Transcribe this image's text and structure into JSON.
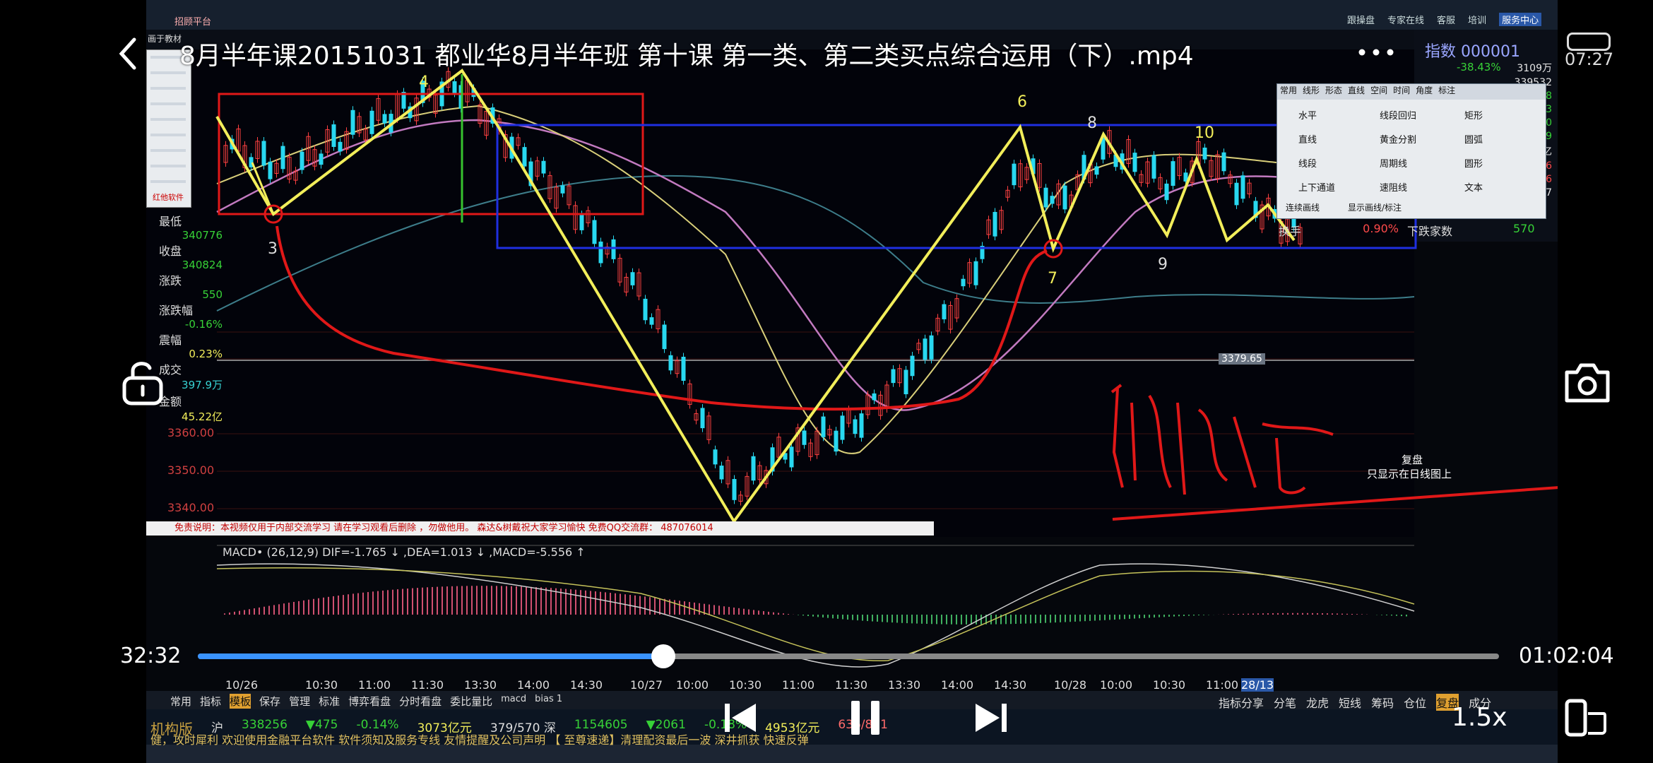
{
  "player": {
    "title": "8月半年课20151031 都业华8月半年班 第十课 第一类、第二类买点综合运用（下）.mp4",
    "clock": "07:27",
    "current_time": "32:32",
    "total_time": "01:02:04",
    "progress": 0.358,
    "speed": "1.5x"
  },
  "app": {
    "index_name": "指数 000001",
    "left_labels": [
      {
        "label": "最低",
        "value": "340776"
      },
      {
        "label": "收盘",
        "value": "340824"
      },
      {
        "label": "涨跌",
        "value": "550"
      },
      {
        "label": "涨跌幅",
        "value": "-0.16%"
      },
      {
        "label": "震幅",
        "value": "0.23%"
      },
      {
        "label": "成交",
        "value": "397.9万"
      },
      {
        "label": "金额",
        "value": "45.22亿"
      }
    ],
    "price_axis": [
      "3360.00",
      "3350.00",
      "3340.00"
    ],
    "price_marker": "3379.65",
    "macd_label": "MACD• (26,12,9) DIF=-1.765 ↓ ,DEA=1.013 ↓ ,MACD=-5.556 ↑",
    "time_axis": [
      "10/26",
      "10:30",
      "11:00",
      "11:30",
      "13:30",
      "14:00",
      "14:30",
      "10/27",
      "10:00",
      "10:30",
      "11:00",
      "11:30",
      "13:30",
      "14:00",
      "14:30",
      "10/28",
      "10:00",
      "10:30",
      "11:00",
      "28/13"
    ],
    "wave_labels": [
      "4",
      "3",
      "6",
      "8",
      "10",
      "7",
      "9"
    ],
    "disclaimer": "免责说明：本视频仅用于内部交流学习  请在学习观看后删除 ，勿做他用。  森达&树戴祝大家学习愉快    免费QQ交流群： 487076014",
    "handwriting_label": "复盘",
    "handwriting_note": "只显示在日线图上",
    "pen_tool_label": "红他软件",
    "right_panel": [
      {
        "label": "换手",
        "value": "0.90%",
        "extra": "下跌家数",
        "count": "570"
      }
    ],
    "right_values": [
      "3109万",
      "339532",
      "28",
      "53",
      "20",
      "59",
      "亿",
      "76",
      "96",
      "67"
    ],
    "right_top": "-38.43%",
    "tools": [
      "水平",
      "线段回归",
      "矩形",
      "直线",
      "黄金分割",
      "圆弧",
      "线段",
      "周期线",
      "圆形",
      "上下通道",
      "速阻线",
      "文本"
    ],
    "tool_tabs": [
      "常用",
      "线形",
      "形态",
      "直线",
      "空间",
      "时间",
      "角度",
      "标注"
    ],
    "tool_options": [
      "连续画线",
      "显示画线/标注"
    ],
    "bottom_tabs": [
      "常用",
      "指标",
      "模板",
      "保存",
      "管理",
      "标准",
      "博弈看盘",
      "分时看盘",
      "委比量比",
      "macd",
      "bias 1"
    ],
    "bottom_right_tabs": [
      "指标分享",
      "分笔",
      "龙虎",
      "短线",
      "筹码",
      "仓位",
      "复盘",
      "成分"
    ],
    "ticker": [
      "机构版",
      "沪",
      "338256",
      "▼475",
      "-0.14%",
      "3073亿元",
      "379/570 深",
      "1154605",
      "▼2061",
      "-0.18%",
      "4953亿元",
      "636/851"
    ],
    "ticker2": "健，攻时犀利     欢迎使用金融平台软件     软件须知及服务专线     友情提醒及公司声明     【 至尊速递】清理配资最后一波 深井抓获 快速反弹",
    "top_menu": [
      "跟操盘",
      "专家在线",
      "客服",
      "培训",
      "服务中心"
    ],
    "top_tab": "招顾平台",
    "pen_panel_label": "画于教材"
  }
}
